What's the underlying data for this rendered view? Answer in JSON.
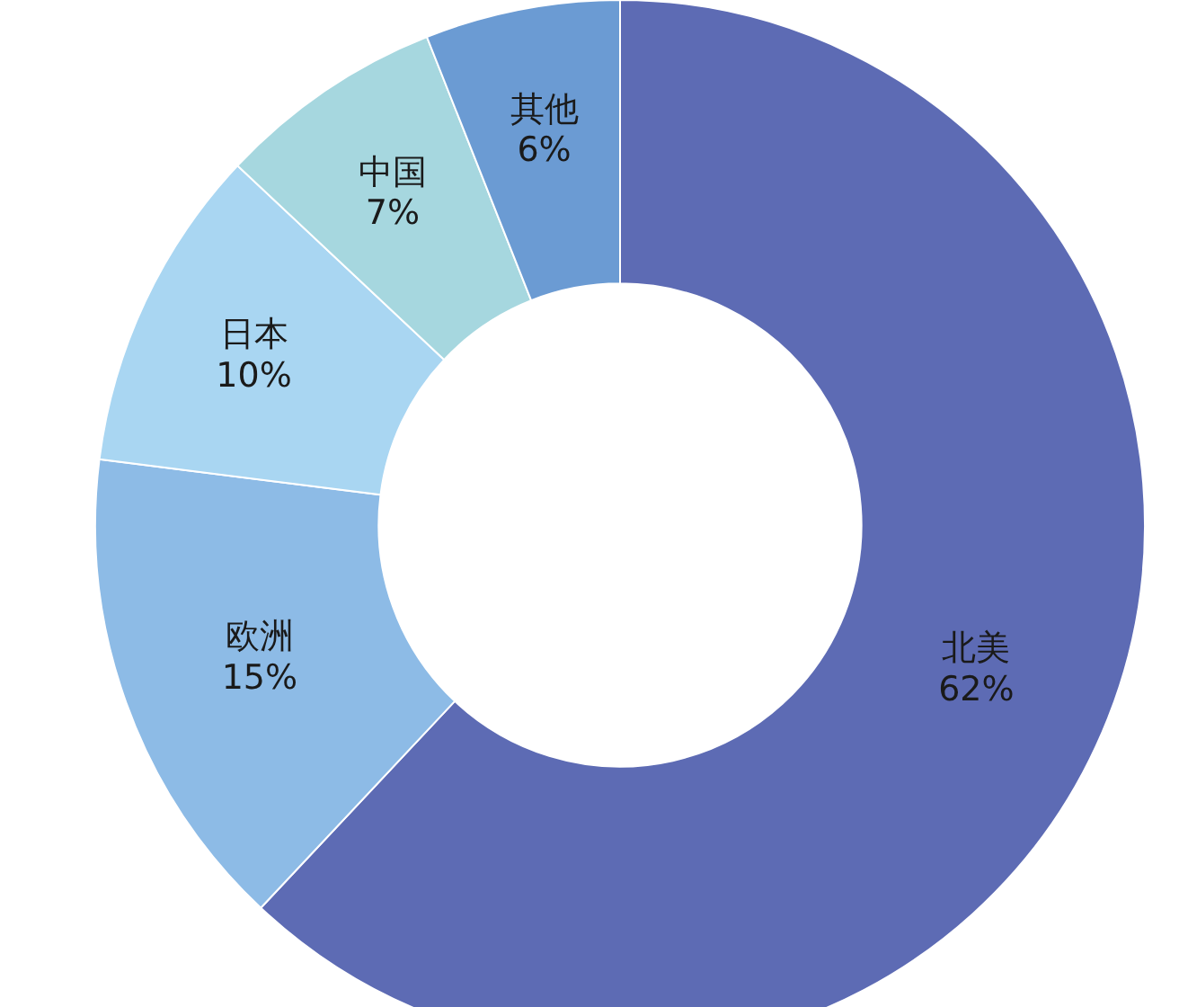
{
  "chart_data": {
    "type": "donut",
    "categories": [
      "北美",
      "欧洲",
      "日本",
      "中国",
      "其他"
    ],
    "values": [
      62,
      15,
      10,
      7,
      6
    ],
    "colors": [
      "#5d6bb4",
      "#8dbbe6",
      "#a9d6f2",
      "#a6d7df",
      "#6b9bd3"
    ],
    "value_labels": [
      "62%",
      "15%",
      "10%",
      "7%",
      "6%"
    ]
  }
}
